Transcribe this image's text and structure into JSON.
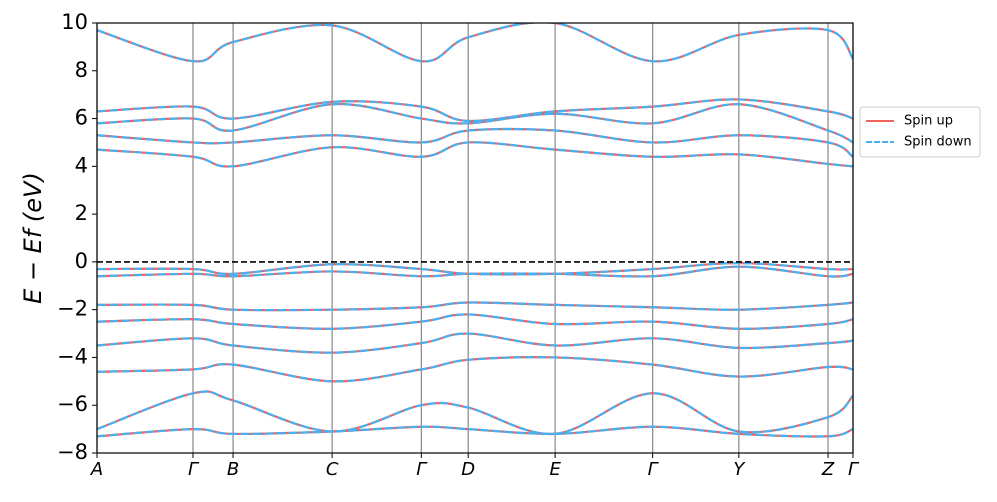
{
  "chart_data": {
    "type": "band",
    "y_label": "E − Ef (eV)",
    "x": [
      0,
      0.127,
      0.18,
      0.311,
      0.429,
      0.491,
      0.606,
      0.735,
      0.849,
      0.967,
      1.0
    ],
    "xlim": [
      0,
      1.0
    ],
    "xticks": [
      {
        "value": 0,
        "label": "A"
      },
      {
        "value": 0.127,
        "label": "Γ"
      },
      {
        "value": 0.18,
        "label": "B"
      },
      {
        "value": 0.311,
        "label": "C"
      },
      {
        "value": 0.429,
        "label": "Γ"
      },
      {
        "value": 0.491,
        "label": "D"
      },
      {
        "value": 0.606,
        "label": "E"
      },
      {
        "value": 0.735,
        "label": "Γ"
      },
      {
        "value": 0.849,
        "label": "Y"
      },
      {
        "value": 0.967,
        "label": "Z"
      },
      {
        "value": 1.0,
        "label": "Γ"
      }
    ],
    "ylim": [
      -8,
      10
    ],
    "yticks": [
      {
        "value": -8,
        "label": "−8"
      },
      {
        "value": -6,
        "label": "−6"
      },
      {
        "value": -4,
        "label": "−4"
      },
      {
        "value": -2,
        "label": "−2"
      },
      0,
      2,
      4,
      6,
      8,
      10
    ],
    "fermi_line": 0,
    "legend": "outside right",
    "series": [
      {
        "name": "Spin up",
        "color": "#f0605d",
        "dash": false,
        "bands": [
          [
            -0.3,
            -0.3,
            -0.5,
            -0.1,
            -0.3,
            -0.5,
            -0.5,
            -0.3,
            -0.05,
            -0.3,
            -0.3
          ],
          [
            -0.6,
            -0.5,
            -0.6,
            -0.4,
            -0.6,
            -0.5,
            -0.5,
            -0.6,
            -0.2,
            -0.6,
            -0.5
          ],
          [
            -1.8,
            -1.8,
            -2.0,
            -2.0,
            -1.9,
            -1.7,
            -1.8,
            -1.9,
            -2.0,
            -1.8,
            -1.7
          ],
          [
            -2.5,
            -2.4,
            -2.6,
            -2.8,
            -2.5,
            -2.2,
            -2.6,
            -2.5,
            -2.8,
            -2.6,
            -2.4
          ],
          [
            -3.5,
            -3.2,
            -3.5,
            -3.8,
            -3.4,
            -3.0,
            -3.5,
            -3.2,
            -3.6,
            -3.4,
            -3.3
          ],
          [
            -4.6,
            -4.5,
            -4.3,
            -5.0,
            -4.5,
            -4.1,
            -4.0,
            -4.3,
            -4.8,
            -4.4,
            -4.5
          ],
          [
            -7.0,
            -5.5,
            -5.8,
            -7.1,
            -6.0,
            -6.1,
            -7.2,
            -5.5,
            -7.1,
            -6.5,
            -5.6
          ],
          [
            -7.3,
            -7.0,
            -7.2,
            -7.1,
            -6.9,
            -7.0,
            -7.2,
            -6.9,
            -7.2,
            -7.3,
            -7.0
          ],
          [
            4.7,
            4.4,
            4.0,
            4.8,
            4.4,
            5.0,
            4.7,
            4.4,
            4.5,
            4.1,
            4.0
          ],
          [
            5.3,
            5.0,
            5.0,
            5.3,
            5.0,
            5.5,
            5.5,
            5.0,
            5.3,
            5.0,
            4.4
          ],
          [
            5.8,
            6.0,
            5.5,
            6.6,
            6.0,
            5.8,
            6.2,
            5.8,
            6.6,
            5.5,
            5.0
          ],
          [
            6.3,
            6.5,
            6.0,
            6.7,
            6.5,
            5.9,
            6.3,
            6.5,
            6.8,
            6.3,
            6.0
          ],
          [
            9.7,
            8.4,
            9.2,
            9.9,
            8.4,
            9.4,
            10,
            8.4,
            9.5,
            9.7,
            8.5
          ]
        ]
      },
      {
        "name": "Spin down",
        "color": "#4ab0f0",
        "dash": true,
        "bands": [
          [
            -0.3,
            -0.3,
            -0.5,
            -0.1,
            -0.3,
            -0.5,
            -0.5,
            -0.3,
            -0.05,
            -0.3,
            -0.3
          ],
          [
            -0.6,
            -0.5,
            -0.6,
            -0.4,
            -0.6,
            -0.5,
            -0.5,
            -0.6,
            -0.2,
            -0.6,
            -0.5
          ],
          [
            -1.8,
            -1.8,
            -2.0,
            -2.0,
            -1.9,
            -1.7,
            -1.8,
            -1.9,
            -2.0,
            -1.8,
            -1.7
          ],
          [
            -2.5,
            -2.4,
            -2.6,
            -2.8,
            -2.5,
            -2.2,
            -2.6,
            -2.5,
            -2.8,
            -2.6,
            -2.4
          ],
          [
            -3.5,
            -3.2,
            -3.5,
            -3.8,
            -3.4,
            -3.0,
            -3.5,
            -3.2,
            -3.6,
            -3.4,
            -3.3
          ],
          [
            -4.6,
            -4.5,
            -4.3,
            -5.0,
            -4.5,
            -4.1,
            -4.0,
            -4.3,
            -4.8,
            -4.4,
            -4.5
          ],
          [
            -7.0,
            -5.5,
            -5.8,
            -7.1,
            -6.0,
            -6.1,
            -7.2,
            -5.5,
            -7.1,
            -6.5,
            -5.6
          ],
          [
            -7.3,
            -7.0,
            -7.2,
            -7.1,
            -6.9,
            -7.0,
            -7.2,
            -6.9,
            -7.2,
            -7.3,
            -7.0
          ],
          [
            4.7,
            4.4,
            4.0,
            4.8,
            4.4,
            5.0,
            4.7,
            4.4,
            4.5,
            4.1,
            4.0
          ],
          [
            5.3,
            5.0,
            5.0,
            5.3,
            5.0,
            5.5,
            5.5,
            5.0,
            5.3,
            5.0,
            4.4
          ],
          [
            5.8,
            6.0,
            5.5,
            6.6,
            6.0,
            5.8,
            6.2,
            5.8,
            6.6,
            5.5,
            5.0
          ],
          [
            6.3,
            6.5,
            6.0,
            6.7,
            6.5,
            5.9,
            6.3,
            6.5,
            6.8,
            6.3,
            6.0
          ],
          [
            9.7,
            8.4,
            9.2,
            9.9,
            8.4,
            9.4,
            10,
            8.4,
            9.5,
            9.7,
            8.5
          ]
        ]
      }
    ]
  }
}
